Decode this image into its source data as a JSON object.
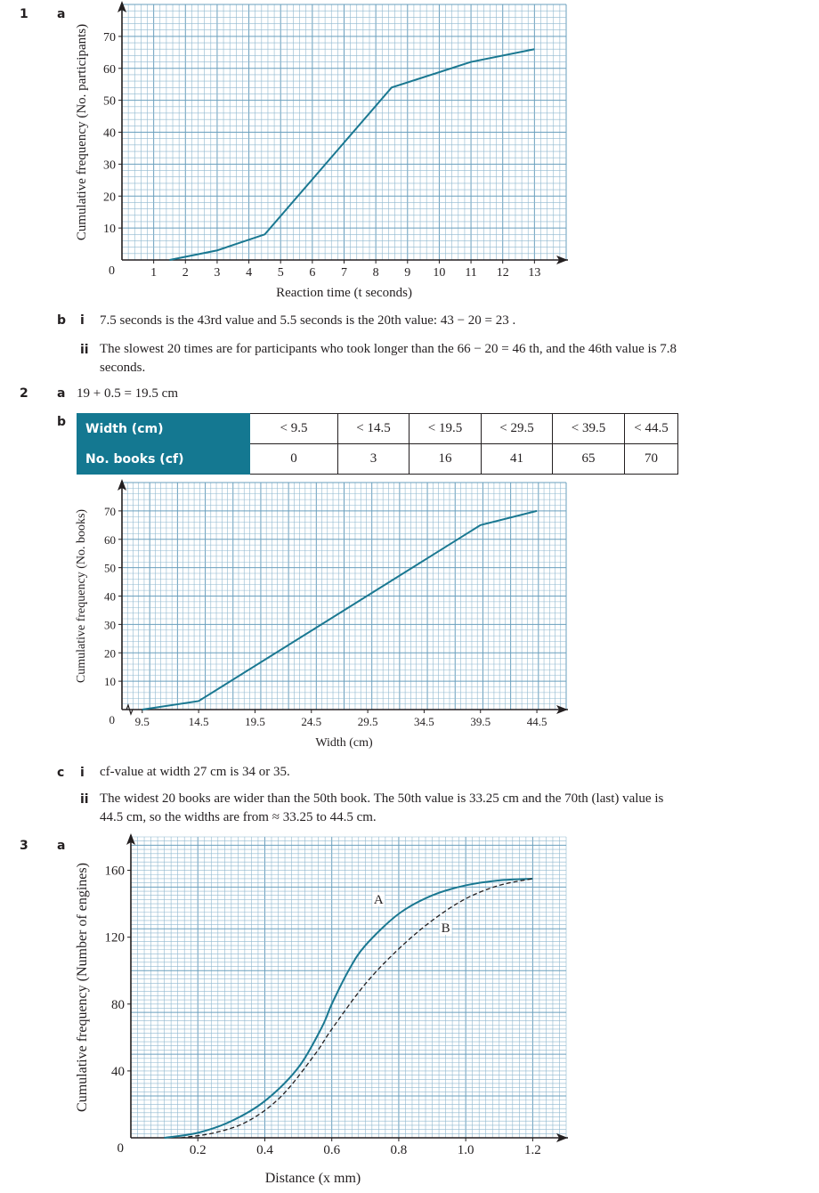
{
  "q1": {
    "number": "1",
    "a_label": "a",
    "b_label": "b",
    "bi_label": "i",
    "bi_text": "7.5 seconds is the 43rd value and 5.5 seconds is the 20th value: 43 − 20 = 23 .",
    "bii_label": "ii",
    "bii_text_line1": "The slowest 20 times are for participants who took longer than the 66 − 20 = 46 th, and the 46th value is 7.8",
    "bii_text_line2": "seconds."
  },
  "q2": {
    "number": "2",
    "a_label": "a",
    "a_text": "19 + 0.5 = 19.5 cm",
    "b_label": "b",
    "table": {
      "row_headers": [
        "Width (cm)",
        "No. books (cf)"
      ],
      "widths": [
        "< 9.5",
        "< 14.5",
        "< 19.5",
        "< 29.5",
        "< 39.5",
        "< 44.5"
      ],
      "books": [
        "0",
        "3",
        "16",
        "41",
        "65",
        "70"
      ]
    },
    "c_label": "c",
    "ci_label": "i",
    "ci_text": "cf-value at width 27 cm is 34 or 35.",
    "cii_label": "ii",
    "cii_text_line1": "The widest 20 books are wider than the 50th book. The 50th value is 33.25 cm and the 70th (last) value is",
    "cii_text_line2": "44.5 cm, so the widths are from ≈ 33.25 to 44.5 cm."
  },
  "q3": {
    "number": "3",
    "a_label": "a"
  },
  "colors": {
    "curve": "#1a7891",
    "grid": "#8fb8cf",
    "grid_major": "#6a9fbd",
    "table_header": "#147891",
    "dashed": "#231f20"
  },
  "chart_data": [
    {
      "type": "line",
      "xlabel": "Reaction time (t seconds)",
      "ylabel": "Cumulative frequency (No. participants)",
      "origin_label": "0",
      "xlim": [
        0,
        14
      ],
      "ylim": [
        0,
        80
      ],
      "xticks": [
        "1",
        "2",
        "3",
        "4",
        "5",
        "6",
        "7",
        "8",
        "9",
        "10",
        "11",
        "12",
        "13"
      ],
      "yticks": [
        "10",
        "20",
        "30",
        "40",
        "50",
        "60",
        "70"
      ],
      "grid": true,
      "series": [
        {
          "x": [
            1.5,
            3,
            4.5,
            8.5,
            11,
            13
          ],
          "y": [
            0,
            3,
            8,
            54,
            62,
            66
          ],
          "style": "solid"
        }
      ]
    },
    {
      "type": "line",
      "xlabel": "Width (cm)",
      "ylabel": "Cumulative frequency (No. books)",
      "origin_label": "0",
      "axis_break": true,
      "xlim": [
        7.7,
        47.1
      ],
      "ylim": [
        0,
        80
      ],
      "xticks": [
        "9.5",
        "14.5",
        "19.5",
        "24.5",
        "29.5",
        "34.5",
        "39.5",
        "44.5"
      ],
      "yticks": [
        "10",
        "20",
        "30",
        "40",
        "50",
        "60",
        "70"
      ],
      "grid": true,
      "series": [
        {
          "x": [
            9.5,
            14.5,
            39.5,
            44.5
          ],
          "y": [
            0,
            3,
            65,
            70
          ],
          "style": "solid"
        }
      ]
    },
    {
      "type": "line",
      "xlabel": "Distance (x mm)",
      "ylabel": "Cumulative frequency (Number of engines)",
      "origin_label": "0",
      "xlim": [
        0,
        1.3
      ],
      "ylim": [
        0,
        180
      ],
      "xticks": [
        "0.2",
        "0.4",
        "0.6",
        "0.8",
        "1.0",
        "1.2"
      ],
      "yticks": [
        "40",
        "80",
        "120",
        "160"
      ],
      "grid": true,
      "series": [
        {
          "name": "A",
          "x": [
            0.1,
            0.2,
            0.3,
            0.4,
            0.5,
            0.57,
            0.6,
            0.65,
            0.7,
            0.8,
            0.9,
            1.0,
            1.1,
            1.2
          ],
          "y": [
            0,
            3,
            10,
            22,
            42,
            66,
            80,
            100,
            115,
            134,
            145,
            151,
            154,
            155
          ],
          "style": "solid"
        },
        {
          "name": "B",
          "x": [
            0.15,
            0.25,
            0.35,
            0.45,
            0.55,
            0.6,
            0.7,
            0.8,
            0.9,
            1.0,
            1.1,
            1.2
          ],
          "y": [
            0,
            3,
            10,
            25,
            50,
            65,
            92,
            113,
            130,
            143,
            151,
            155
          ],
          "style": "dashed"
        }
      ]
    }
  ]
}
